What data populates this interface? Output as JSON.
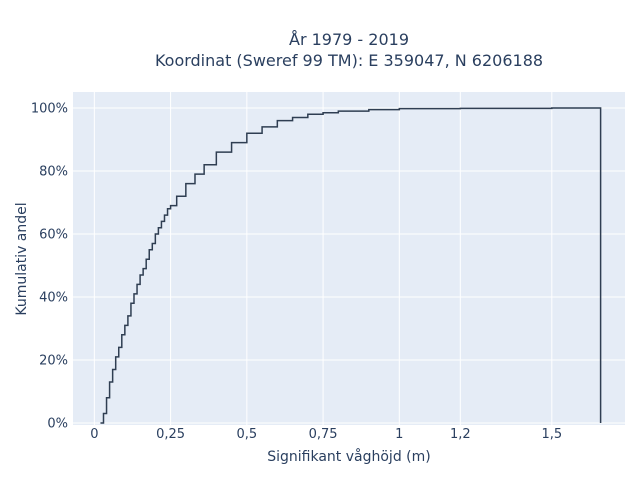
{
  "chart_data": {
    "type": "line",
    "title_line1": "År 1979 - 2019",
    "title_line2": "Koordinat (Sweref 99 TM): E 359047, N 6206188",
    "xlabel": "Signifikant våghöjd (m)",
    "ylabel": "Kumulativ andel",
    "xlim": [
      -0.07,
      1.74
    ],
    "ylim": [
      0,
      1.0
    ],
    "x_ticks": [
      0,
      0.25,
      0.5,
      0.75,
      1.0,
      1.2,
      1.5
    ],
    "x_tick_labels": [
      "0",
      "0,25",
      "0,5",
      "0,75",
      "1",
      "1,2",
      "1,5"
    ],
    "y_ticks": [
      0,
      0.2,
      0.4,
      0.6,
      0.8,
      1.0
    ],
    "y_tick_labels": [
      "0%",
      "20%",
      "40%",
      "60%",
      "80%",
      "100%"
    ],
    "grid": true,
    "series": [
      {
        "color": "#2f3e52",
        "step": true,
        "x": [
          0.02,
          0.03,
          0.04,
          0.05,
          0.06,
          0.07,
          0.08,
          0.09,
          0.1,
          0.11,
          0.12,
          0.13,
          0.14,
          0.15,
          0.16,
          0.17,
          0.18,
          0.19,
          0.2,
          0.21,
          0.22,
          0.23,
          0.24,
          0.25,
          0.27,
          0.3,
          0.33,
          0.36,
          0.4,
          0.45,
          0.5,
          0.55,
          0.6,
          0.65,
          0.7,
          0.75,
          0.8,
          0.9,
          1.0,
          1.2,
          1.5,
          1.66
        ],
        "y": [
          0.0,
          0.03,
          0.08,
          0.13,
          0.17,
          0.21,
          0.24,
          0.28,
          0.31,
          0.34,
          0.38,
          0.41,
          0.44,
          0.47,
          0.49,
          0.52,
          0.55,
          0.57,
          0.6,
          0.62,
          0.64,
          0.66,
          0.68,
          0.69,
          0.72,
          0.76,
          0.79,
          0.82,
          0.86,
          0.89,
          0.92,
          0.94,
          0.96,
          0.97,
          0.98,
          0.985,
          0.99,
          0.995,
          0.998,
          0.999,
          1.0,
          1.0
        ]
      }
    ]
  }
}
